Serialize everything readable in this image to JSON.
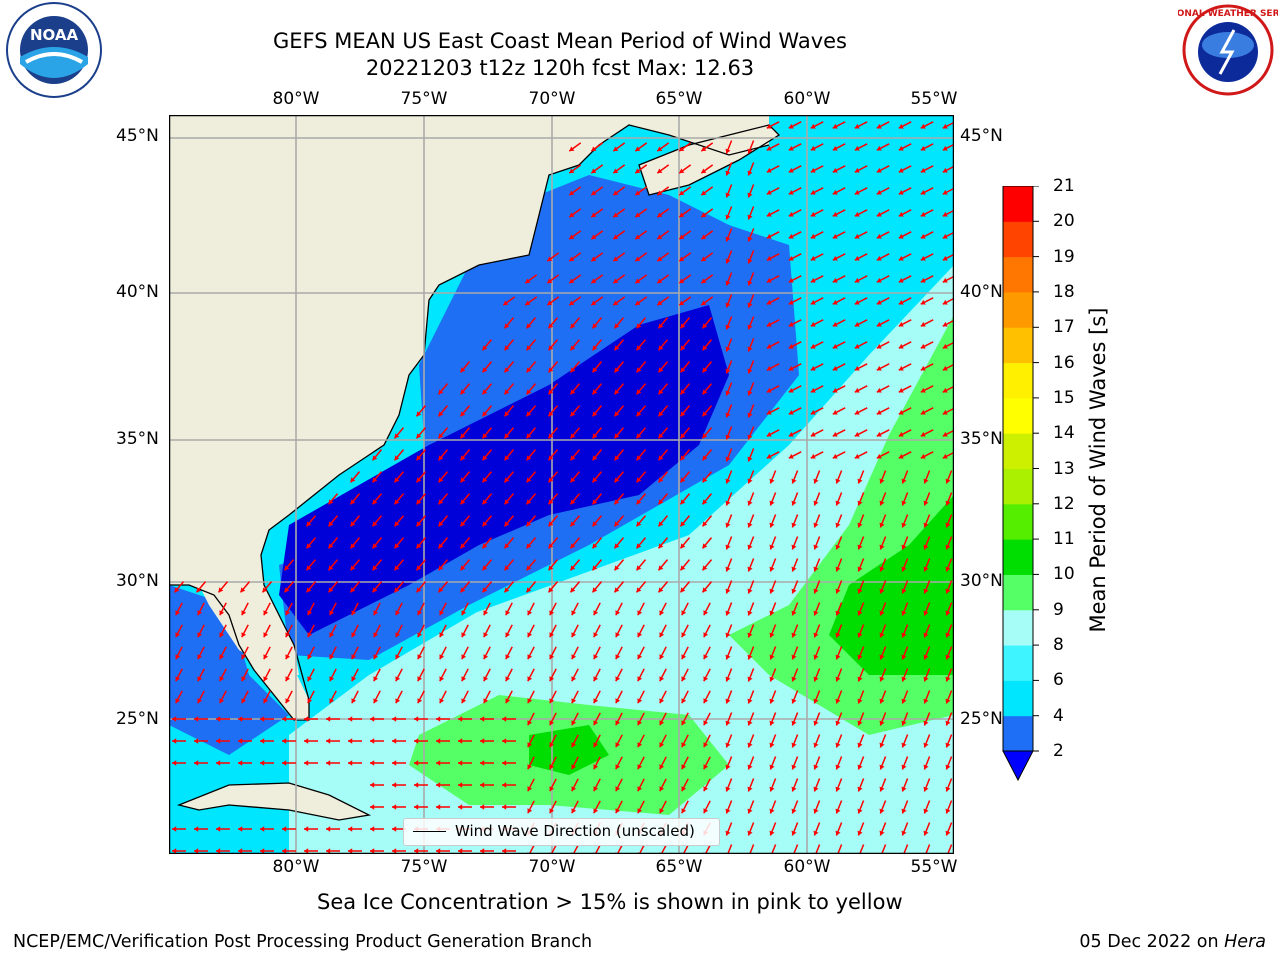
{
  "title": {
    "line1": "GEFS MEAN US East Coast Mean Period of Wind Waves",
    "line2": "20221203 t12z 120h fcst   Max: 12.63"
  },
  "logos": {
    "left": "NOAA",
    "right": "NATIONAL WEATHER SERVICE"
  },
  "map": {
    "lon_labels": [
      "80°W",
      "75°W",
      "70°W",
      "65°W",
      "60°W",
      "55°W"
    ],
    "lat_labels": [
      "45°N",
      "40°N",
      "35°N",
      "30°N",
      "25°N"
    ],
    "legend": "Wind Wave Direction (unscaled)",
    "colors": {
      "land": "#efeedd",
      "ocean_deep": "#0000d8",
      "ocean_blue": "#1f6ff5",
      "ocean_cyan": "#00e6ff",
      "ocean_light": "#a6fcf6",
      "green": "#55ff66",
      "bright_green": "#00dd00",
      "arrows": "#ff0000"
    }
  },
  "colorbar": {
    "title": "Mean Period of Wind Waves [s]",
    "ticks": [
      "2",
      "4",
      "6",
      "8",
      "9",
      "10",
      "11",
      "12",
      "13",
      "14",
      "15",
      "16",
      "17",
      "18",
      "19",
      "20",
      "21"
    ],
    "colors": [
      "#1e6ff5",
      "#00e6ff",
      "#3ef5ff",
      "#a6fcf6",
      "#55ff66",
      "#00dd00",
      "#55ee00",
      "#aaf000",
      "#ccf000",
      "#ffff00",
      "#fff000",
      "#ffc000",
      "#ff9900",
      "#ff7700",
      "#ff4400",
      "#ff0000"
    ],
    "extend_color": "#0000ff"
  },
  "subtitle": "Sea Ice Concentration > 15% is shown in pink to yellow",
  "footer": {
    "left": "NCEP/EMC/Verification Post Processing Product Generation Branch",
    "right_date": "05 Dec 2022 on ",
    "right_host": "Hera"
  }
}
